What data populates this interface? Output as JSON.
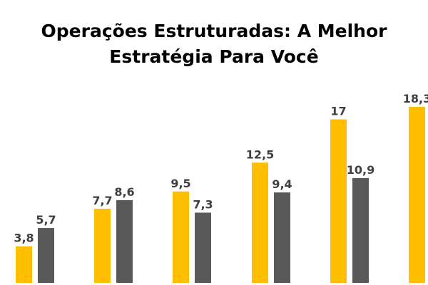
{
  "page": {
    "title_line1": "Operações Estruturadas: A Melhor",
    "title_line2": "Estratégia Para Você"
  },
  "colors": {
    "series_a": "#FFBE00",
    "series_b": "#595959",
    "label": "#3f3f3f"
  },
  "chart_data": {
    "type": "bar",
    "title": "Operações Estruturadas: A Melhor Estratégia Para Você",
    "xlabel": "",
    "ylabel": "",
    "grid": false,
    "ylim": [
      0,
      20
    ],
    "series": [
      {
        "values": [
          3.8,
          7.7,
          9.5,
          12.5,
          17,
          18.3
        ],
        "labels": [
          "3,8",
          "7,7",
          "9,5",
          "12,5",
          "17",
          "18,3"
        ]
      },
      {
        "values": [
          5.7,
          8.6,
          7.3,
          9.4,
          10.9
        ],
        "labels": [
          "5,7",
          "8,6",
          "7,3",
          "9,4",
          "10,9"
        ]
      }
    ]
  }
}
